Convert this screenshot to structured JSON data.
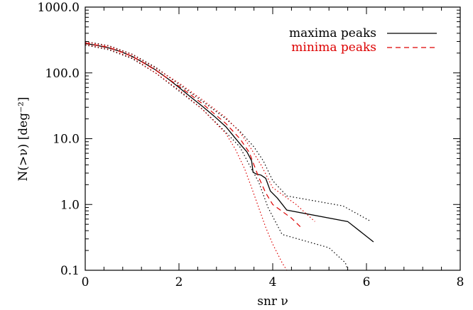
{
  "chart_data": {
    "type": "line",
    "xlabel": "snr ν",
    "ylabel": "N(>ν)   [deg⁻²]",
    "xlim": [
      0,
      8
    ],
    "ylim": [
      0.1,
      1000
    ],
    "y_scale": "log",
    "x_ticks": [
      {
        "value": 0,
        "label": "0"
      },
      {
        "value": 2,
        "label": "2"
      },
      {
        "value": 4,
        "label": "4"
      },
      {
        "value": 6,
        "label": "6"
      },
      {
        "value": 8,
        "label": "8"
      }
    ],
    "y_ticks": [
      {
        "value": 0.1,
        "label": "0.1"
      },
      {
        "value": 1,
        "label": "1.0"
      },
      {
        "value": 10,
        "label": "10.0"
      },
      {
        "value": 100,
        "label": "100.0"
      },
      {
        "value": 1000,
        "label": "1000.0"
      }
    ],
    "legend_position": "top-right",
    "legend": [
      {
        "name": "maxima peaks",
        "color": "#000000",
        "dash": "solid"
      },
      {
        "name": "minima peaks",
        "color": "#dd0000",
        "dash": "dashed"
      }
    ],
    "series": [
      {
        "name": "maxima peaks",
        "color": "#000000",
        "dash": "solid",
        "x": [
          0,
          0.25,
          0.5,
          0.75,
          1.0,
          1.25,
          1.5,
          1.75,
          2.0,
          2.25,
          2.5,
          2.75,
          3.0,
          3.2,
          3.35,
          3.45,
          3.55,
          3.58,
          3.65,
          3.75,
          3.85,
          3.95,
          4.1,
          4.3,
          5.6,
          6.15
        ],
        "y": [
          280,
          262,
          240,
          212,
          178,
          142,
          111,
          83,
          60,
          43,
          31,
          22,
          15.2,
          10.2,
          7.6,
          6.3,
          4.6,
          3.1,
          2.9,
          2.8,
          2.5,
          1.6,
          1.25,
          0.82,
          0.55,
          0.27
        ]
      },
      {
        "name": "",
        "color": "#000000",
        "dash": "dotted",
        "x": [
          0,
          0.5,
          1.0,
          1.5,
          2.0,
          2.5,
          3.0,
          3.3,
          3.6,
          3.8,
          4.0,
          4.3,
          5.5,
          6.1
        ],
        "y": [
          300,
          260,
          193,
          122,
          67,
          37,
          20,
          13,
          7.5,
          4.6,
          2.3,
          1.35,
          0.95,
          0.55
        ]
      },
      {
        "name": "",
        "color": "#000000",
        "dash": "dotted",
        "x": [
          0,
          0.5,
          1.0,
          1.5,
          2.0,
          2.5,
          3.0,
          3.3,
          3.5,
          3.7,
          3.9,
          4.2,
          5.2,
          5.55,
          5.6
        ],
        "y": [
          265,
          225,
          165,
          100,
          53,
          28,
          12.5,
          7.5,
          4.0,
          2.2,
          0.9,
          0.35,
          0.22,
          0.13,
          0.1
        ]
      },
      {
        "name": "minima peaks",
        "color": "#dd0000",
        "dash": "dashed",
        "x": [
          0,
          0.5,
          1.0,
          1.5,
          2.0,
          2.5,
          3.0,
          3.3,
          3.5,
          3.6,
          3.7,
          3.85,
          4.0,
          4.4,
          4.6
        ],
        "y": [
          285,
          245,
          180,
          110,
          63,
          34,
          17,
          10,
          6.2,
          4.0,
          2.6,
          1.5,
          1.0,
          0.62,
          0.45
        ]
      },
      {
        "name": "",
        "color": "#dd0000",
        "dash": "dotted",
        "x": [
          0,
          0.5,
          1.0,
          1.5,
          2.0,
          2.5,
          3.0,
          3.3,
          3.5,
          3.75,
          4.0,
          4.5,
          4.9
        ],
        "y": [
          295,
          255,
          190,
          118,
          70,
          39,
          21,
          12.5,
          7.8,
          4.0,
          1.8,
          1.0,
          0.55
        ]
      },
      {
        "name": "",
        "color": "#dd0000",
        "dash": "dotted",
        "x": [
          0,
          0.5,
          1.0,
          1.5,
          2.0,
          2.5,
          3.0,
          3.2,
          3.4,
          3.55,
          3.7,
          3.85,
          4.0,
          4.2,
          4.3
        ],
        "y": [
          270,
          230,
          170,
          100,
          55,
          28,
          12,
          7,
          3.5,
          1.8,
          0.9,
          0.45,
          0.25,
          0.13,
          0.1
        ]
      }
    ]
  }
}
